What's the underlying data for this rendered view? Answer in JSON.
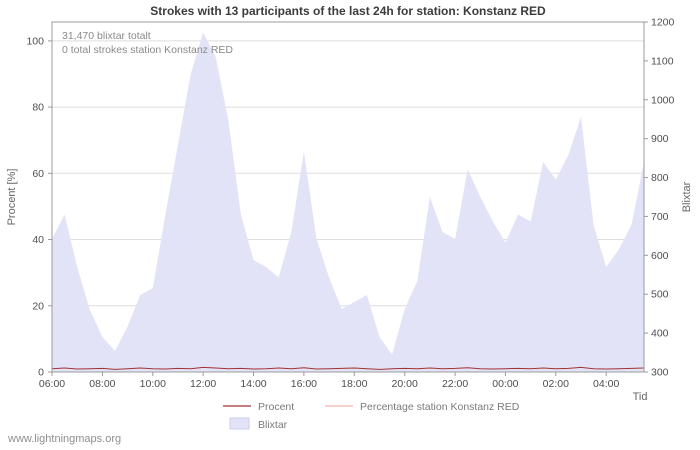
{
  "page": {
    "watermark": "www.lightningmaps.org"
  },
  "chart_data": {
    "type": "area",
    "title": "Strokes with 13 participants of the last 24h for station: Konstanz RED",
    "annotations": [
      "31,470 blixtar totalt",
      "0 total strokes station Konstanz RED"
    ],
    "x_label": "Tid",
    "x_tick_labels": [
      "06:00",
      "08:00",
      "10:00",
      "12:00",
      "14:00",
      "16:00",
      "18:00",
      "20:00",
      "22:00",
      "00:00",
      "02:00",
      "04:00"
    ],
    "y_left": {
      "label": "Procent  [%]",
      "ticks": [
        0,
        20,
        40,
        60,
        80,
        100
      ],
      "min": 0,
      "max": 105.7
    },
    "y_right": {
      "label": "Blixtar",
      "ticks": [
        300,
        400,
        500,
        600,
        700,
        800,
        900,
        1000,
        1100,
        1200
      ],
      "min": 300,
      "max": 1200
    },
    "times": [
      "06:00",
      "06:30",
      "07:00",
      "07:30",
      "08:00",
      "08:30",
      "09:00",
      "09:30",
      "10:00",
      "10:30",
      "11:00",
      "11:30",
      "12:00",
      "12:30",
      "13:00",
      "13:30",
      "14:00",
      "14:30",
      "15:00",
      "15:30",
      "16:00",
      "16:30",
      "17:00",
      "17:30",
      "18:00",
      "18:30",
      "19:00",
      "19:30",
      "20:00",
      "20:30",
      "21:00",
      "21:30",
      "22:00",
      "22:30",
      "23:00",
      "23:30",
      "00:00",
      "00:30",
      "01:00",
      "01:30",
      "02:00",
      "02:30",
      "03:00",
      "03:30",
      "04:00",
      "04:30",
      "05:00",
      "05:30"
    ],
    "series": [
      {
        "name": "Blixtar",
        "kind": "area",
        "axis": "right",
        "color": "#e3e3f8",
        "values": [
          642,
          705,
          570,
          460,
          390,
          354,
          417,
          498,
          516,
          705,
          885,
          1065,
          1173,
          1110,
          948,
          705,
          588,
          570,
          543,
          660,
          867,
          642,
          543,
          462,
          480,
          498,
          390,
          345,
          462,
          534,
          750,
          660,
          642,
          822,
          750,
          687,
          633,
          705,
          687,
          840,
          795,
          858,
          957,
          678,
          570,
          615,
          678,
          840
        ]
      },
      {
        "name": "Procent",
        "kind": "line",
        "axis": "left",
        "color": "#a03232",
        "values": [
          1.0,
          1.2,
          0.9,
          1.0,
          1.1,
          0.8,
          1.0,
          1.2,
          1.0,
          0.9,
          1.1,
          1.0,
          1.4,
          1.2,
          1.0,
          1.1,
          0.9,
          1.0,
          1.2,
          1.0,
          1.3,
          0.9,
          1.0,
          1.1,
          1.2,
          1.0,
          0.8,
          1.0,
          1.1,
          1.0,
          1.2,
          1.0,
          1.1,
          1.3,
          1.0,
          0.9,
          1.0,
          1.1,
          1.0,
          1.2,
          1.0,
          1.1,
          1.4,
          1.0,
          0.9,
          1.0,
          1.1,
          1.2
        ]
      },
      {
        "name": "Percentage station Konstanz RED",
        "kind": "line",
        "axis": "left",
        "color": "#f2b5ad",
        "values": [
          0,
          0,
          0,
          0,
          0,
          0,
          0,
          0,
          0,
          0,
          0,
          0,
          0,
          0,
          0,
          0,
          0,
          0,
          0,
          0,
          0,
          0,
          0,
          0,
          0,
          0,
          0,
          0,
          0,
          0,
          0,
          0,
          0,
          0,
          0,
          0,
          0,
          0,
          0,
          0,
          0,
          0,
          0,
          0,
          0,
          0,
          0,
          0
        ]
      }
    ],
    "legend": [
      {
        "label": "Procent",
        "swatch": "line",
        "color": "#a03232"
      },
      {
        "label": "Percentage station Konstanz RED",
        "swatch": "line",
        "color": "#f2b5ad"
      },
      {
        "label": "Blixtar",
        "swatch": "area",
        "color": "#e3e3f8"
      }
    ],
    "grid": "horizontal",
    "legend_position": "bottom"
  }
}
